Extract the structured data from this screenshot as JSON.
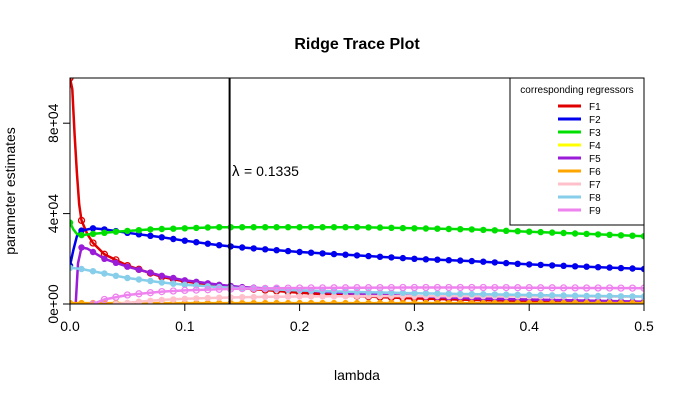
{
  "chart_data": {
    "type": "line",
    "title": "Ridge Trace Plot",
    "xlabel": "lambda",
    "ylabel": "parameter estimates",
    "xlim": [
      0,
      0.5
    ],
    "ylim": [
      0,
      100000
    ],
    "x_ticks": [
      0,
      0.1,
      0.2,
      0.3,
      0.4,
      0.5
    ],
    "x_tick_labels": [
      "0.0",
      "0.1",
      "0.2",
      "0.3",
      "0.4",
      "0.5"
    ],
    "y_ticks": [
      0,
      40000,
      80000
    ],
    "y_tick_labels": [
      "0e+00",
      "4e+04",
      "8e+04"
    ],
    "grid": false,
    "legend": {
      "title": "corresponding regressors",
      "placement": "top-right"
    },
    "annotation": {
      "x": 0.1335,
      "symbol": "λ",
      "text": "= 0.1335"
    },
    "series": [
      {
        "name": "F1",
        "color": "#e00000",
        "marker": "open-circle",
        "points": [
          [
            0,
            100000
          ],
          [
            0.002,
            95000
          ],
          [
            0.004,
            75000
          ],
          [
            0.006,
            58000
          ],
          [
            0.008,
            44000
          ],
          [
            0.01,
            37000
          ],
          [
            0.015,
            31000
          ],
          [
            0.02,
            27000
          ],
          [
            0.03,
            22000
          ],
          [
            0.05,
            17000
          ],
          [
            0.08,
            12000
          ],
          [
            0.1,
            10000
          ],
          [
            0.13,
            8000
          ],
          [
            0.15,
            7000
          ],
          [
            0.2,
            5000
          ],
          [
            0.25,
            3500
          ],
          [
            0.3,
            2500
          ],
          [
            0.35,
            1800
          ],
          [
            0.4,
            1300
          ],
          [
            0.45,
            900
          ],
          [
            0.5,
            500
          ]
        ]
      },
      {
        "name": "F2",
        "color": "#0000ee",
        "marker": "solid-circle",
        "points": [
          [
            0,
            17000
          ],
          [
            0.003,
            24000
          ],
          [
            0.006,
            30000
          ],
          [
            0.01,
            32500
          ],
          [
            0.02,
            33500
          ],
          [
            0.03,
            33000
          ],
          [
            0.05,
            31500
          ],
          [
            0.08,
            29500
          ],
          [
            0.1,
            28000
          ],
          [
            0.13,
            26000
          ],
          [
            0.15,
            25000
          ],
          [
            0.2,
            23000
          ],
          [
            0.25,
            21500
          ],
          [
            0.3,
            20000
          ],
          [
            0.35,
            19000
          ],
          [
            0.4,
            17500
          ],
          [
            0.45,
            16500
          ],
          [
            0.5,
            15500
          ]
        ]
      },
      {
        "name": "F3",
        "color": "#00e000",
        "marker": "solid-circle",
        "points": [
          [
            0,
            36000
          ],
          [
            0.003,
            33000
          ],
          [
            0.006,
            31000
          ],
          [
            0.01,
            30500
          ],
          [
            0.02,
            31000
          ],
          [
            0.04,
            32000
          ],
          [
            0.07,
            33000
          ],
          [
            0.1,
            33500
          ],
          [
            0.13,
            34000
          ],
          [
            0.2,
            34000
          ],
          [
            0.25,
            34000
          ],
          [
            0.3,
            33500
          ],
          [
            0.35,
            33000
          ],
          [
            0.4,
            32000
          ],
          [
            0.45,
            31000
          ],
          [
            0.5,
            30000
          ]
        ]
      },
      {
        "name": "F4",
        "color": "#ffff00",
        "marker": "solid-circle",
        "points": [
          [
            0,
            200
          ],
          [
            0.1,
            200
          ],
          [
            0.2,
            200
          ],
          [
            0.3,
            200
          ],
          [
            0.4,
            200
          ],
          [
            0.5,
            200
          ]
        ]
      },
      {
        "name": "F5",
        "color": "#9a1bd8",
        "marker": "solid-circle",
        "points": [
          [
            0.005,
            0
          ],
          [
            0.007,
            18000
          ],
          [
            0.01,
            25000
          ],
          [
            0.015,
            24500
          ],
          [
            0.02,
            23000
          ],
          [
            0.03,
            20000
          ],
          [
            0.05,
            16500
          ],
          [
            0.08,
            12500
          ],
          [
            0.1,
            10500
          ],
          [
            0.13,
            8500
          ],
          [
            0.15,
            7500
          ],
          [
            0.2,
            6000
          ],
          [
            0.25,
            4500
          ],
          [
            0.3,
            3500
          ],
          [
            0.35,
            2500
          ],
          [
            0.4,
            2000
          ],
          [
            0.45,
            1500
          ],
          [
            0.5,
            1000
          ]
        ]
      },
      {
        "name": "F6",
        "color": "#ffa500",
        "marker": "solid-circle",
        "points": [
          [
            0,
            400
          ],
          [
            0.1,
            400
          ],
          [
            0.2,
            400
          ],
          [
            0.3,
            400
          ],
          [
            0.4,
            400
          ],
          [
            0.5,
            400
          ]
        ]
      },
      {
        "name": "F7",
        "color": "#ffc0cb",
        "marker": "solid-circle",
        "points": [
          [
            0.04,
            0
          ],
          [
            0.06,
            1000
          ],
          [
            0.08,
            1800
          ],
          [
            0.1,
            2300
          ],
          [
            0.13,
            2800
          ],
          [
            0.15,
            3000
          ],
          [
            0.2,
            3300
          ],
          [
            0.25,
            3500
          ],
          [
            0.3,
            3500
          ],
          [
            0.35,
            3500
          ],
          [
            0.4,
            3400
          ],
          [
            0.45,
            3300
          ],
          [
            0.5,
            3200
          ]
        ]
      },
      {
        "name": "F8",
        "color": "#87ceeb",
        "marker": "solid-circle",
        "points": [
          [
            0,
            16000
          ],
          [
            0.01,
            15500
          ],
          [
            0.03,
            13500
          ],
          [
            0.05,
            11500
          ],
          [
            0.08,
            9500
          ],
          [
            0.1,
            8500
          ],
          [
            0.13,
            7500
          ],
          [
            0.15,
            7000
          ],
          [
            0.2,
            6000
          ],
          [
            0.25,
            5300
          ],
          [
            0.3,
            4800
          ],
          [
            0.35,
            4400
          ],
          [
            0.4,
            4000
          ],
          [
            0.45,
            3600
          ],
          [
            0.5,
            3300
          ]
        ]
      },
      {
        "name": "F9",
        "color": "#ee82ee",
        "marker": "open-circle",
        "points": [
          [
            0.02,
            0
          ],
          [
            0.03,
            2000
          ],
          [
            0.05,
            4000
          ],
          [
            0.08,
            5500
          ],
          [
            0.1,
            6000
          ],
          [
            0.13,
            6500
          ],
          [
            0.15,
            6800
          ],
          [
            0.2,
            7100
          ],
          [
            0.25,
            7200
          ],
          [
            0.3,
            7300
          ],
          [
            0.35,
            7300
          ],
          [
            0.4,
            7200
          ],
          [
            0.45,
            7100
          ],
          [
            0.5,
            7000
          ]
        ]
      }
    ]
  }
}
